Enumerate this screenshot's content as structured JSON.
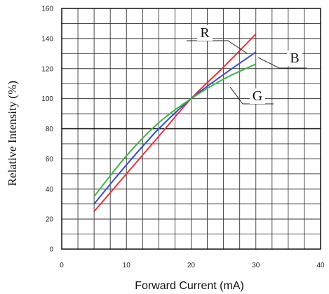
{
  "chart_data": {
    "type": "line",
    "xlabel": "Forward Current (mA)",
    "ylabel": "Relative Intensity (%)",
    "xlim": [
      0,
      40
    ],
    "ylim": [
      0,
      160
    ],
    "x_ticks": [
      0,
      10,
      20,
      30,
      40
    ],
    "y_ticks": [
      0,
      20,
      40,
      60,
      80,
      100,
      120,
      140,
      160
    ],
    "x_minor_step": 2.5,
    "y_minor_step": 10,
    "grid": true,
    "reference_line": {
      "y": 80
    },
    "series": [
      {
        "name": "R",
        "color": "#e8343c",
        "x": [
          5,
          10,
          15,
          20,
          25,
          30
        ],
        "y": [
          25,
          50,
          75,
          100,
          121,
          143
        ]
      },
      {
        "name": "B",
        "color": "#3a4fc8",
        "x": [
          5,
          10,
          15,
          20,
          25,
          30
        ],
        "y": [
          30,
          56,
          80,
          100,
          116,
          131
        ]
      },
      {
        "name": "G",
        "color": "#3fb449",
        "x": [
          5,
          10,
          15,
          20,
          25,
          30
        ],
        "y": [
          35,
          62,
          84,
          100,
          113,
          123
        ]
      }
    ]
  }
}
